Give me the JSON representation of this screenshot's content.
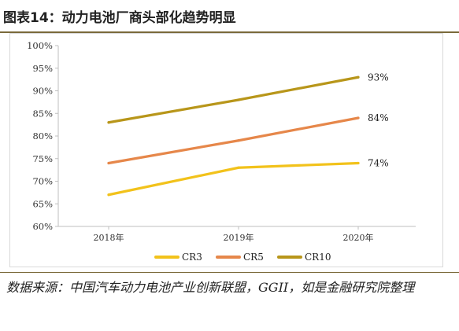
{
  "header": {
    "title": "图表14：动力电池厂商头部化趋势明显"
  },
  "footer": {
    "source": "数据来源：中国汽车动力电池产业创新联盟，GGII，如是金融研究院整理"
  },
  "chart_data": {
    "type": "line",
    "title": "",
    "xlabel": "",
    "ylabel": "",
    "categories": [
      "2018年",
      "2019年",
      "2020年"
    ],
    "ylim": [
      0.6,
      1.0
    ],
    "yticks": [
      "60%",
      "65%",
      "70%",
      "75%",
      "80%",
      "85%",
      "90%",
      "95%",
      "100%"
    ],
    "grid": false,
    "legend_position": "bottom",
    "series": [
      {
        "name": "CR3",
        "values": [
          0.67,
          0.73,
          0.74
        ],
        "color": "#f2c21b",
        "end_label": "74%"
      },
      {
        "name": "CR5",
        "values": [
          0.74,
          0.79,
          0.84
        ],
        "color": "#e6874a",
        "end_label": "84%"
      },
      {
        "name": "CR10",
        "values": [
          0.83,
          0.88,
          0.93
        ],
        "color": "#b8961a",
        "end_label": "93%"
      }
    ]
  }
}
